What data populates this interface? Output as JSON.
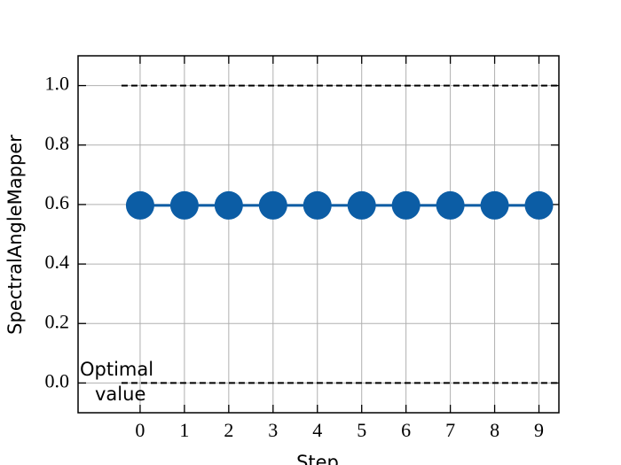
{
  "chart_data": {
    "type": "line",
    "x_label": "Step",
    "y_label": "SpectralAngleMapper",
    "x": [
      0,
      1,
      2,
      3,
      4,
      5,
      6,
      7,
      8,
      9
    ],
    "series": [
      {
        "name": "SpectralAngleMapper",
        "color": "#0C5DA5",
        "values": [
          0.597,
          0.597,
          0.597,
          0.597,
          0.597,
          0.597,
          0.597,
          0.597,
          0.597,
          0.597
        ]
      }
    ],
    "reference_lines": [
      0.0,
      1.0
    ],
    "annotation": "Optimal\nvalue",
    "xlim": [
      -1.4,
      9.45
    ],
    "ylim": [
      -0.1,
      1.1
    ],
    "xticks": [
      0,
      1,
      2,
      3,
      4,
      5,
      6,
      7,
      8,
      9
    ],
    "yticks": [
      {
        "value": 0,
        "label": "0.0"
      },
      {
        "value": 0.2,
        "label": "0.2"
      },
      {
        "value": 0.4,
        "label": "0.4"
      },
      {
        "value": 0.6,
        "label": "0.6"
      },
      {
        "value": 0.8,
        "label": "0.8"
      },
      {
        "value": 1,
        "label": "1.0"
      }
    ],
    "grid": true
  }
}
